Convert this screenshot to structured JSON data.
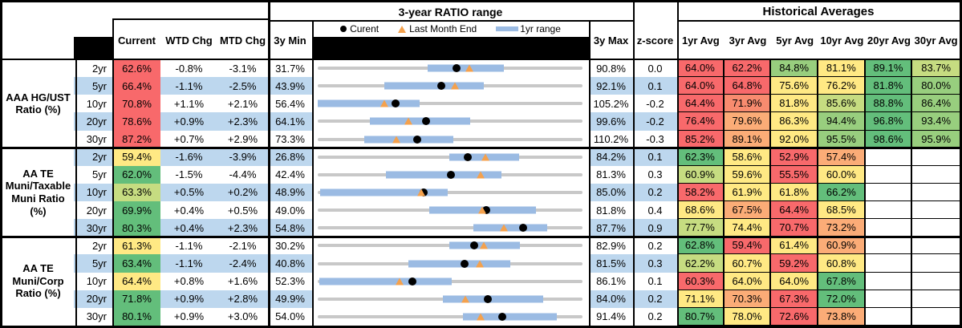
{
  "colors": {
    "band_blue": "#BDD7EE",
    "bar_blue": "#9BBBE3",
    "track_gray": "#C8C8C8",
    "triangle_orange": "#F4A14D",
    "dot_black": "#000000",
    "scale": {
      "r": "#F8696B",
      "ro": "#F88B6F",
      "o": "#FBAC77",
      "y": "#FFE984",
      "yg": "#C6DC81",
      "lg": "#98CE7E",
      "g": "#63BE7B",
      "w": "#FFFFFF"
    }
  },
  "header": {
    "range_title": "3-year RATIO range",
    "historical_title": "Historical Averages",
    "current": "Current",
    "wtd": "WTD Chg",
    "mtd": "MTD Chg",
    "min": "3y Min",
    "max": "3y Max",
    "z": "z-score",
    "avgs": [
      "1yr Avg",
      "3yr Avg",
      "5yr Avg",
      "10yr Avg",
      "20yr Avg",
      "30yr Avg"
    ],
    "legend": {
      "current": "Curent",
      "last_month": "Last Month End",
      "range": "1yr range"
    }
  },
  "chart_data": {
    "type": "table",
    "description": "Municipal bond ratio monitor: current ratios vs 3-year range with 1yr range bar, current dot, last-month-end triangle, and historical averages heatmap. Marker positions are percent of 3y min-max span.",
    "groups": [
      {
        "label": "AAA HG/UST\nRatio (%)",
        "rows": [
          {
            "tenor": "2yr",
            "current": "62.6%",
            "current_color": "r",
            "wtd": "-0.8%",
            "mtd": "-3.1%",
            "min": "31.7%",
            "max": "90.8%",
            "z": "0.0",
            "range_chart": {
              "bar_lo_pct": 41.6,
              "bar_hi_pct": 70.2,
              "dot_pct": 52.3,
              "tri_pct": 57.5
            },
            "avgs": [
              "64.0%",
              "62.2%",
              "84.8%",
              "81.1%",
              "89.1%",
              "83.7%"
            ],
            "avg_colors": [
              "r",
              "r",
              "lg",
              "y",
              "g",
              "yg"
            ]
          },
          {
            "tenor": "5yr",
            "current": "66.4%",
            "current_color": "r",
            "wtd": "-1.1%",
            "mtd": "-2.5%",
            "min": "43.9%",
            "max": "92.1%",
            "z": "0.1",
            "range_chart": {
              "bar_lo_pct": 25.0,
              "bar_hi_pct": 62.7,
              "dot_pct": 46.7,
              "tri_pct": 51.9
            },
            "avgs": [
              "64.0%",
              "64.8%",
              "75.6%",
              "76.2%",
              "81.8%",
              "80.0%"
            ],
            "avg_colors": [
              "r",
              "r",
              "y",
              "y",
              "g",
              "lg"
            ]
          },
          {
            "tenor": "10yr",
            "current": "70.8%",
            "current_color": "r",
            "wtd": "+1.1%",
            "mtd": "+2.1%",
            "min": "56.4%",
            "max": "105.2%",
            "z": "-0.2",
            "range_chart": {
              "bar_lo_pct": 0.0,
              "bar_hi_pct": 38.6,
              "dot_pct": 29.5,
              "tri_pct": 25.2
            },
            "avgs": [
              "64.4%",
              "71.9%",
              "81.8%",
              "85.6%",
              "88.8%",
              "86.4%"
            ],
            "avg_colors": [
              "r",
              "ro",
              "y",
              "yg",
              "g",
              "lg"
            ]
          },
          {
            "tenor": "20yr",
            "current": "78.6%",
            "current_color": "r",
            "wtd": "+0.9%",
            "mtd": "+2.3%",
            "min": "64.1%",
            "max": "99.6%",
            "z": "-0.2",
            "range_chart": {
              "bar_lo_pct": 19.6,
              "bar_hi_pct": 57.7,
              "dot_pct": 40.8,
              "tri_pct": 34.4
            },
            "avgs": [
              "76.4%",
              "79.6%",
              "86.3%",
              "94.4%",
              "96.8%",
              "93.4%"
            ],
            "avg_colors": [
              "r",
              "o",
              "y",
              "lg",
              "g",
              "lg"
            ]
          },
          {
            "tenor": "30yr",
            "current": "87.2%",
            "current_color": "r",
            "wtd": "+0.7%",
            "mtd": "+2.9%",
            "min": "73.3%",
            "max": "110.2%",
            "z": "-0.3",
            "range_chart": {
              "bar_lo_pct": 17.6,
              "bar_hi_pct": 51.2,
              "dot_pct": 37.7,
              "tri_pct": 29.8
            },
            "avgs": [
              "85.2%",
              "89.1%",
              "92.0%",
              "95.5%",
              "98.6%",
              "95.9%"
            ],
            "avg_colors": [
              "r",
              "o",
              "y",
              "lg",
              "g",
              "lg"
            ]
          }
        ]
      },
      {
        "label": "AA TE\nMuni/Taxable\nMuni Ratio\n(%)",
        "rows": [
          {
            "tenor": "2yr",
            "current": "59.4%",
            "current_color": "y",
            "wtd": "-1.6%",
            "mtd": "-3.9%",
            "min": "26.8%",
            "max": "84.2%",
            "z": "0.1",
            "range_chart": {
              "bar_lo_pct": 49.7,
              "bar_hi_pct": 75.9,
              "dot_pct": 56.8,
              "tri_pct": 63.6
            },
            "avgs": [
              "62.3%",
              "58.6%",
              "52.9%",
              "57.4%",
              "",
              ""
            ],
            "avg_colors": [
              "g",
              "y",
              "r",
              "o",
              "w",
              "w"
            ]
          },
          {
            "tenor": "5yr",
            "current": "62.0%",
            "current_color": "g",
            "wtd": "-1.5%",
            "mtd": "-4.4%",
            "min": "42.4%",
            "max": "81.3%",
            "z": "0.3",
            "range_chart": {
              "bar_lo_pct": 25.6,
              "bar_hi_pct": 69.3,
              "dot_pct": 50.4,
              "tri_pct": 61.7
            },
            "avgs": [
              "60.9%",
              "59.6%",
              "55.5%",
              "60.0%",
              "",
              ""
            ],
            "avg_colors": [
              "yg",
              "y",
              "r",
              "y",
              "w",
              "w"
            ]
          },
          {
            "tenor": "10yr",
            "current": "63.3%",
            "current_color": "yg",
            "wtd": "+0.5%",
            "mtd": "+0.2%",
            "min": "48.9%",
            "max": "85.0%",
            "z": "0.2",
            "range_chart": {
              "bar_lo_pct": 1.0,
              "bar_hi_pct": 49.2,
              "dot_pct": 39.9,
              "tri_pct": 39.3
            },
            "avgs": [
              "58.2%",
              "61.9%",
              "61.8%",
              "66.2%",
              "",
              ""
            ],
            "avg_colors": [
              "r",
              "y",
              "y",
              "g",
              "w",
              "w"
            ]
          },
          {
            "tenor": "20yr",
            "current": "69.9%",
            "current_color": "g",
            "wtd": "+0.4%",
            "mtd": "+0.5%",
            "min": "49.0%",
            "max": "81.8%",
            "z": "0.4",
            "range_chart": {
              "bar_lo_pct": 42.2,
              "bar_hi_pct": 82.3,
              "dot_pct": 63.7,
              "tri_pct": 62.2
            },
            "avgs": [
              "68.6%",
              "67.5%",
              "64.4%",
              "68.5%",
              "",
              ""
            ],
            "avg_colors": [
              "y",
              "o",
              "r",
              "y",
              "w",
              "w"
            ]
          },
          {
            "tenor": "30yr",
            "current": "80.3%",
            "current_color": "g",
            "wtd": "+0.4%",
            "mtd": "+2.3%",
            "min": "54.8%",
            "max": "87.7%",
            "z": "0.9",
            "range_chart": {
              "bar_lo_pct": 58.7,
              "bar_hi_pct": 86.8,
              "dot_pct": 77.5,
              "tri_pct": 70.5
            },
            "avgs": [
              "77.7%",
              "74.4%",
              "70.7%",
              "73.2%",
              "",
              ""
            ],
            "avg_colors": [
              "yg",
              "y",
              "r",
              "o",
              "w",
              "w"
            ]
          }
        ]
      },
      {
        "label": "AA TE\nMuni/Corp\nRatio (%)",
        "rows": [
          {
            "tenor": "2yr",
            "current": "61.3%",
            "current_color": "y",
            "wtd": "-1.1%",
            "mtd": "-2.1%",
            "min": "30.2%",
            "max": "82.9%",
            "z": "0.2",
            "range_chart": {
              "bar_lo_pct": 49.7,
              "bar_hi_pct": 76.3,
              "dot_pct": 59.0,
              "tri_pct": 63.0
            },
            "avgs": [
              "62.8%",
              "59.4%",
              "61.4%",
              "60.9%",
              "",
              ""
            ],
            "avg_colors": [
              "g",
              "r",
              "y",
              "o",
              "w",
              "w"
            ]
          },
          {
            "tenor": "5yr",
            "current": "63.4%",
            "current_color": "g",
            "wtd": "-1.1%",
            "mtd": "-2.4%",
            "min": "40.8%",
            "max": "81.5%",
            "z": "0.3",
            "range_chart": {
              "bar_lo_pct": 34.1,
              "bar_hi_pct": 72.8,
              "dot_pct": 55.5,
              "tri_pct": 61.4
            },
            "avgs": [
              "62.2%",
              "60.7%",
              "59.2%",
              "60.8%",
              "",
              ""
            ],
            "avg_colors": [
              "yg",
              "y",
              "r",
              "y",
              "w",
              "w"
            ]
          },
          {
            "tenor": "10yr",
            "current": "64.4%",
            "current_color": "y",
            "wtd": "+0.8%",
            "mtd": "+1.6%",
            "min": "52.3%",
            "max": "86.1%",
            "z": "0.1",
            "range_chart": {
              "bar_lo_pct": 0.5,
              "bar_hi_pct": 50.7,
              "dot_pct": 35.8,
              "tri_pct": 31.1
            },
            "avgs": [
              "60.3%",
              "64.0%",
              "64.0%",
              "67.8%",
              "",
              ""
            ],
            "avg_colors": [
              "r",
              "y",
              "y",
              "g",
              "w",
              "w"
            ]
          },
          {
            "tenor": "20yr",
            "current": "71.8%",
            "current_color": "g",
            "wtd": "+0.9%",
            "mtd": "+2.8%",
            "min": "49.9%",
            "max": "84.0%",
            "z": "0.2",
            "range_chart": {
              "bar_lo_pct": 47.2,
              "bar_hi_pct": 85.3,
              "dot_pct": 64.2,
              "tri_pct": 56.0
            },
            "avgs": [
              "71.1%",
              "70.3%",
              "67.3%",
              "72.0%",
              "",
              ""
            ],
            "avg_colors": [
              "y",
              "o",
              "r",
              "g",
              "w",
              "w"
            ]
          },
          {
            "tenor": "30yr",
            "current": "80.1%",
            "current_color": "g",
            "wtd": "+0.9%",
            "mtd": "+3.0%",
            "min": "54.0%",
            "max": "91.4%",
            "z": "0.2",
            "range_chart": {
              "bar_lo_pct": 54.7,
              "bar_hi_pct": 90.4,
              "dot_pct": 69.8,
              "tri_pct": 61.8
            },
            "avgs": [
              "80.7%",
              "78.0%",
              "72.6%",
              "73.8%",
              "",
              ""
            ],
            "avg_colors": [
              "g",
              "y",
              "r",
              "o",
              "w",
              "w"
            ]
          }
        ]
      }
    ]
  }
}
